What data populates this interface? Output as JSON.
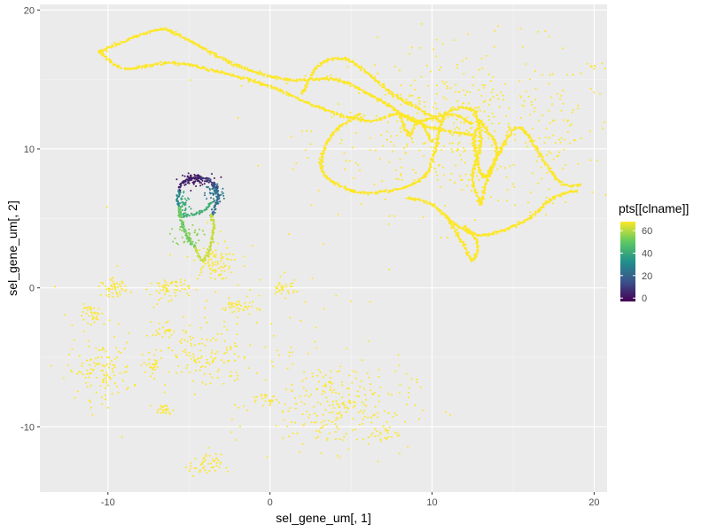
{
  "chart_data": {
    "type": "scatter",
    "xlabel": "sel_gene_um[, 1]",
    "ylabel": "sel_gene_um[, 2]",
    "xlim": [
      -14.2,
      20.8
    ],
    "ylim": [
      -14.7,
      20.4
    ],
    "x_ticks": [
      -10,
      0,
      10,
      20
    ],
    "x_tick_labels": [
      "-10",
      "0",
      "10",
      "20"
    ],
    "y_ticks": [
      -10,
      0,
      10,
      20
    ],
    "y_tick_labels": [
      "-10",
      "0",
      "10",
      "20"
    ],
    "grid": true,
    "panel_background": "#ebebeb",
    "legend": {
      "title": "pts[[clname]]",
      "position": "right",
      "range": [
        -3,
        68
      ],
      "breaks": [
        0,
        20,
        40,
        60
      ],
      "break_labels": [
        "0",
        "20",
        "40",
        "60"
      ],
      "palette": [
        "#440154",
        "#3b528b",
        "#21908c",
        "#5dc963",
        "#fde725"
      ]
    },
    "clusters": [
      {
        "cx": 12.5,
        "cy": 11.5,
        "sx": 5.0,
        "sy": 3.0,
        "n": 500,
        "value": 68
      },
      {
        "cx": -4.6,
        "cy": 7.8,
        "sx": 0.5,
        "sy": 0.2,
        "n": 80,
        "value": 2
      },
      {
        "cx": -3.4,
        "cy": 6.8,
        "sx": 0.3,
        "sy": 0.4,
        "n": 60,
        "value": 25
      },
      {
        "cx": -5.3,
        "cy": 6.0,
        "sx": 0.2,
        "sy": 0.5,
        "n": 40,
        "value": 40
      },
      {
        "cx": -5.0,
        "cy": 3.8,
        "sx": 0.4,
        "sy": 0.4,
        "n": 40,
        "value": 55
      },
      {
        "cx": -3.6,
        "cy": 1.8,
        "sx": 0.6,
        "sy": 0.6,
        "n": 80,
        "value": 68
      },
      {
        "cx": -4.0,
        "cy": -5.0,
        "sx": 1.4,
        "sy": 1.2,
        "n": 120,
        "value": 68
      },
      {
        "cx": -10.5,
        "cy": -6.0,
        "sx": 1.0,
        "sy": 1.0,
        "n": 120,
        "value": 68
      },
      {
        "cx": -10.8,
        "cy": -2.0,
        "sx": 0.5,
        "sy": 0.4,
        "n": 40,
        "value": 68
      },
      {
        "cx": -9.6,
        "cy": 0.0,
        "sx": 0.4,
        "sy": 0.3,
        "n": 50,
        "value": 68
      },
      {
        "cx": -6.2,
        "cy": 0.0,
        "sx": 0.6,
        "sy": 0.4,
        "n": 60,
        "value": 68
      },
      {
        "cx": -2.0,
        "cy": -1.4,
        "sx": 0.5,
        "sy": 0.3,
        "n": 40,
        "value": 68
      },
      {
        "cx": 0.8,
        "cy": 0.0,
        "sx": 0.4,
        "sy": 0.3,
        "n": 30,
        "value": 68
      },
      {
        "cx": 4.0,
        "cy": -8.5,
        "sx": 2.4,
        "sy": 1.6,
        "n": 260,
        "value": 68
      },
      {
        "cx": -4.0,
        "cy": -12.8,
        "sx": 0.5,
        "sy": 0.4,
        "n": 50,
        "value": 68
      },
      {
        "cx": -6.6,
        "cy": -8.8,
        "sx": 0.3,
        "sy": 0.2,
        "n": 25,
        "value": 68
      },
      {
        "cx": -7.2,
        "cy": -5.5,
        "sx": 0.3,
        "sy": 0.4,
        "n": 25,
        "value": 68
      },
      {
        "cx": -6.6,
        "cy": -3.0,
        "sx": 0.3,
        "sy": 0.3,
        "n": 20,
        "value": 68
      },
      {
        "cx": -0.3,
        "cy": -8.0,
        "sx": 0.4,
        "sy": 0.2,
        "n": 20,
        "value": 68
      },
      {
        "cx": 7.0,
        "cy": -10.5,
        "sx": 0.5,
        "sy": 0.4,
        "n": 25,
        "value": 68
      },
      {
        "cx": -1.5,
        "cy": -2.0,
        "sx": 4.5,
        "sy": 4.0,
        "n": 90,
        "value": 68
      }
    ],
    "curves": [
      {
        "value": 68,
        "points": [
          [
            -10.5,
            17.0
          ],
          [
            -8.0,
            18.2
          ],
          [
            -6.5,
            18.6
          ],
          [
            -5.0,
            17.8
          ],
          [
            -2.0,
            16.0
          ],
          [
            1.0,
            15.0
          ],
          [
            4.0,
            15.0
          ],
          [
            6.0,
            14.0
          ],
          [
            7.5,
            13.0
          ],
          [
            9.0,
            12.0
          ],
          [
            11.0,
            12.5
          ],
          [
            12.5,
            11.8
          ]
        ]
      },
      {
        "value": 68,
        "points": [
          [
            -10.5,
            17.0
          ],
          [
            -9.0,
            15.8
          ],
          [
            -6.0,
            16.2
          ],
          [
            -3.0,
            15.5
          ],
          [
            0.0,
            14.5
          ],
          [
            3.0,
            13.0
          ],
          [
            6.0,
            12.0
          ],
          [
            8.0,
            12.5
          ],
          [
            10.0,
            11.5
          ],
          [
            12.5,
            11.0
          ]
        ]
      },
      {
        "value": 68,
        "points": [
          [
            2.0,
            14.0
          ],
          [
            3.0,
            16.0
          ],
          [
            4.5,
            16.5
          ],
          [
            6.0,
            15.5
          ],
          [
            7.5,
            14.0
          ],
          [
            9.0,
            13.0
          ],
          [
            10.5,
            12.0
          ]
        ]
      },
      {
        "value": 68,
        "points": [
          [
            5.5,
            12.5
          ],
          [
            3.8,
            11.0
          ],
          [
            3.2,
            8.5
          ],
          [
            5.0,
            7.0
          ],
          [
            7.5,
            7.0
          ],
          [
            9.5,
            8.0
          ],
          [
            10.2,
            10.0
          ],
          [
            10.8,
            12.5
          ],
          [
            12.5,
            12.8
          ],
          [
            13.0,
            10.5
          ],
          [
            12.5,
            8.0
          ],
          [
            13.0,
            6.0
          ]
        ]
      },
      {
        "value": 68,
        "points": [
          [
            13.0,
            6.0
          ],
          [
            13.5,
            8.0
          ],
          [
            14.5,
            10.5
          ],
          [
            15.5,
            11.5
          ],
          [
            17.0,
            9.0
          ],
          [
            18.0,
            7.5
          ],
          [
            19.2,
            7.4
          ]
        ]
      },
      {
        "value": 68,
        "points": [
          [
            8.5,
            6.5
          ],
          [
            10.0,
            6.0
          ],
          [
            11.5,
            4.5
          ],
          [
            13.0,
            3.8
          ],
          [
            14.5,
            4.2
          ],
          [
            16.0,
            5.0
          ],
          [
            17.5,
            6.5
          ],
          [
            19.0,
            7.0
          ]
        ]
      },
      {
        "value": 68,
        "points": [
          [
            11.0,
            5.0
          ],
          [
            12.0,
            3.0
          ],
          [
            12.5,
            2.0
          ],
          [
            12.8,
            3.2
          ],
          [
            12.0,
            4.5
          ]
        ]
      },
      {
        "value": 68,
        "points": [
          [
            13.0,
            12.0
          ],
          [
            14.0,
            10.0
          ],
          [
            13.2,
            8.0
          ],
          [
            12.6,
            10.5
          ],
          [
            13.0,
            12.0
          ]
        ]
      },
      {
        "value": 68,
        "points": [
          [
            8.0,
            12.5
          ],
          [
            8.6,
            11.0
          ],
          [
            9.2,
            12.0
          ],
          [
            10.0,
            10.5
          ]
        ]
      },
      {
        "value": 4,
        "points": [
          [
            -5.6,
            7.0
          ],
          [
            -5.4,
            7.6
          ],
          [
            -4.8,
            7.9
          ],
          [
            -4.2,
            7.9
          ]
        ]
      },
      {
        "value": 10,
        "points": [
          [
            -4.2,
            7.9
          ],
          [
            -3.7,
            7.7
          ],
          [
            -3.3,
            7.2
          ]
        ]
      },
      {
        "value": 22,
        "points": [
          [
            -3.3,
            7.2
          ],
          [
            -3.2,
            6.5
          ],
          [
            -3.4,
            5.8
          ],
          [
            -3.6,
            5.2
          ]
        ]
      },
      {
        "value": 30,
        "points": [
          [
            -5.6,
            7.0
          ],
          [
            -5.7,
            6.4
          ],
          [
            -5.6,
            5.8
          ]
        ]
      },
      {
        "value": 42,
        "points": [
          [
            -5.6,
            5.8
          ],
          [
            -5.4,
            5.2
          ],
          [
            -4.6,
            5.3
          ],
          [
            -4.0,
            5.6
          ],
          [
            -3.6,
            6.2
          ]
        ]
      },
      {
        "value": 52,
        "points": [
          [
            -5.6,
            5.8
          ],
          [
            -5.5,
            5.0
          ],
          [
            -5.3,
            4.2
          ],
          [
            -5.0,
            3.4
          ],
          [
            -4.6,
            2.9
          ]
        ]
      },
      {
        "value": 62,
        "points": [
          [
            -3.6,
            5.2
          ],
          [
            -3.5,
            4.3
          ],
          [
            -3.6,
            3.4
          ],
          [
            -3.8,
            2.5
          ],
          [
            -4.2,
            2.0
          ],
          [
            -4.6,
            2.9
          ]
        ]
      }
    ]
  }
}
